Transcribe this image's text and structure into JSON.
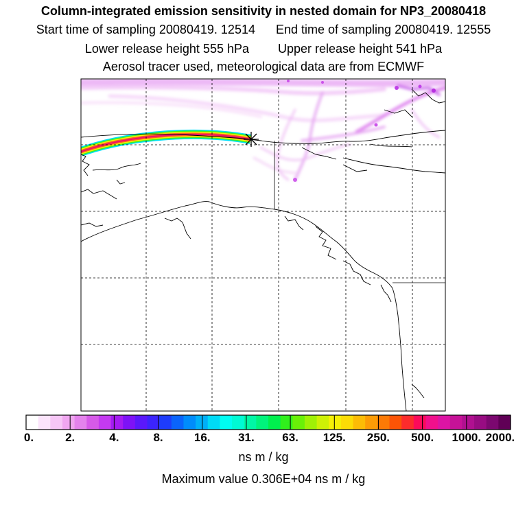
{
  "header": {
    "title": "Column-integrated emission sensitivity in nested domain for NP3_20080418",
    "start_label": "Start time of sampling 20080419. 12514",
    "end_label": "End time of sampling 20080419. 12555",
    "lower_label": "Lower release height  555 hPa",
    "upper_label": "Upper release height  541 hPa",
    "note": "Aerosol tracer used, meteorological data are from ECMWF"
  },
  "map": {
    "release_marker": "release-point-star-icon",
    "colors": {
      "coast": "#000000",
      "grid": "#000000",
      "frame": "#000000"
    }
  },
  "colorbar": {
    "colors": [
      "#ffffff",
      "#fbe4fb",
      "#f6c6f6",
      "#f0a6f0",
      "#e483ec",
      "#d65ae8",
      "#c43af0",
      "#a51bf2",
      "#7e12f7",
      "#5a18fb",
      "#3c24fc",
      "#1e3cfb",
      "#0a64fb",
      "#008cfb",
      "#00b0f8",
      "#00daf6",
      "#00fdf2",
      "#00fad4",
      "#00f7a6",
      "#00f37c",
      "#00ef4e",
      "#30f01c",
      "#6af008",
      "#a0f006",
      "#cef006",
      "#f6f006",
      "#fcdc06",
      "#fcbc06",
      "#fc9c06",
      "#fc7a06",
      "#fc5406",
      "#fc2c2c",
      "#fc0a5a",
      "#f0108c",
      "#dc14a4",
      "#c61298",
      "#b01090",
      "#980c82",
      "#7c0870",
      "#600056"
    ],
    "tick_labels": [
      "0.",
      "2.",
      "4.",
      "8.",
      "16.",
      "31.",
      "63.",
      "125.",
      "250.",
      "500.",
      "1000.",
      "2000."
    ],
    "units": "ns m / kg",
    "max_value_text": "Maximum value  0.306E+04 ns m / kg"
  }
}
